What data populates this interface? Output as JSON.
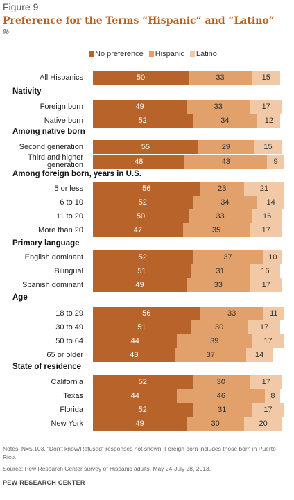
{
  "figure_label": "Figure 9",
  "title": "Preference for the Terms “Hispanic” and “Latino”",
  "unit": "%",
  "notes": "Notes: N=5,103. “Don’t know/Refused” responses not shown. Foreign born includes those born in Puerto Rico.",
  "source": "Source: Pew Research Center survey of Hispanic adults, May 24-July 28, 2013.",
  "credit": "PEW RESEARCH CENTER",
  "chart_data": {
    "type": "bar",
    "orientation": "horizontal",
    "stacked": true,
    "colors": [
      "#b8632a",
      "#e2a06a",
      "#f2c9a6"
    ],
    "legend": [
      "No preference",
      "Hispanic",
      "Latino"
    ],
    "legend_position": "top",
    "rows": [
      {
        "section": "",
        "label": "All Hispanics",
        "values": [
          50,
          33,
          15
        ]
      },
      {
        "section": "Nativity",
        "label": "Foreign born",
        "values": [
          49,
          33,
          17
        ]
      },
      {
        "section": "Nativity",
        "label": "Native born",
        "values": [
          52,
          34,
          12
        ]
      },
      {
        "section": "Among native born",
        "label": "Second generation",
        "values": [
          55,
          29,
          15
        ]
      },
      {
        "section": "Among native born",
        "label": "Third and higher generation",
        "values": [
          48,
          43,
          9
        ]
      },
      {
        "section": "Among foreign born, years in U.S.",
        "label": "5 or less",
        "values": [
          56,
          23,
          21
        ]
      },
      {
        "section": "Among foreign born, years in U.S.",
        "label": "6 to 10",
        "values": [
          52,
          34,
          14
        ]
      },
      {
        "section": "Among foreign born, years in U.S.",
        "label": "11 to 20",
        "values": [
          50,
          33,
          16
        ]
      },
      {
        "section": "Among foreign born, years in U.S.",
        "label": "More than 20",
        "values": [
          47,
          35,
          17
        ]
      },
      {
        "section": "Primary language",
        "label": "English dominant",
        "values": [
          52,
          37,
          10
        ]
      },
      {
        "section": "Primary language",
        "label": "Bilingual",
        "values": [
          51,
          31,
          16
        ]
      },
      {
        "section": "Primary language",
        "label": "Spanish dominant",
        "values": [
          49,
          33,
          17
        ]
      },
      {
        "section": "Age",
        "label": "18 to 29",
        "values": [
          56,
          33,
          11
        ]
      },
      {
        "section": "Age",
        "label": "30 to 49",
        "values": [
          51,
          30,
          17
        ]
      },
      {
        "section": "Age",
        "label": "50 to 64",
        "values": [
          44,
          39,
          17
        ]
      },
      {
        "section": "Age",
        "label": "65 or older",
        "values": [
          43,
          37,
          14
        ]
      },
      {
        "section": "State of residence",
        "label": "California",
        "values": [
          52,
          30,
          17
        ]
      },
      {
        "section": "State of residence",
        "label": "Texas",
        "values": [
          44,
          46,
          8
        ]
      },
      {
        "section": "State of residence",
        "label": "Florida",
        "values": [
          52,
          31,
          17
        ]
      },
      {
        "section": "State of residence",
        "label": "New York",
        "values": [
          49,
          30,
          20
        ]
      }
    ]
  }
}
